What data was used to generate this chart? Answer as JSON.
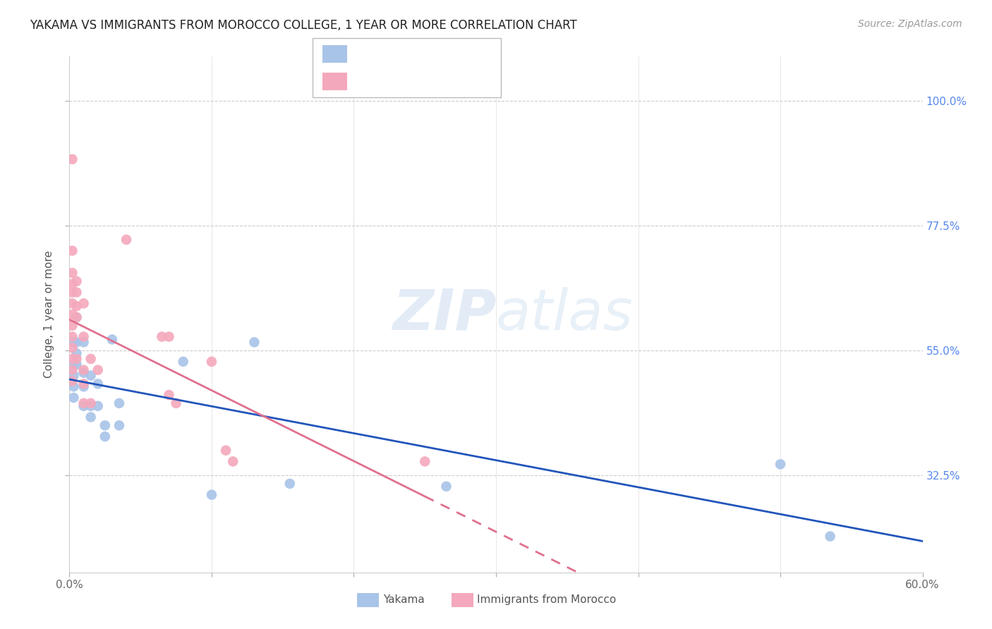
{
  "title": "YAKAMA VS IMMIGRANTS FROM MOROCCO COLLEGE, 1 YEAR OR MORE CORRELATION CHART",
  "source": "Source: ZipAtlas.com",
  "ylabel": "College, 1 year or more",
  "xlim": [
    0.0,
    0.6
  ],
  "ylim": [
    0.15,
    1.08
  ],
  "color_blue": "#a8c4e8",
  "color_pink": "#f4a8bc",
  "line_blue": "#2255bb",
  "line_pink": "#e07090",
  "watermark_zip": "ZIP",
  "watermark_atlas": "atlas",
  "blue_points": [
    [
      0.003,
      0.565
    ],
    [
      0.003,
      0.525
    ],
    [
      0.003,
      0.505
    ],
    [
      0.003,
      0.485
    ],
    [
      0.003,
      0.465
    ],
    [
      0.005,
      0.61
    ],
    [
      0.005,
      0.565
    ],
    [
      0.005,
      0.545
    ],
    [
      0.005,
      0.525
    ],
    [
      0.01,
      0.565
    ],
    [
      0.01,
      0.51
    ],
    [
      0.01,
      0.485
    ],
    [
      0.01,
      0.45
    ],
    [
      0.015,
      0.505
    ],
    [
      0.015,
      0.45
    ],
    [
      0.015,
      0.43
    ],
    [
      0.02,
      0.49
    ],
    [
      0.02,
      0.45
    ],
    [
      0.025,
      0.415
    ],
    [
      0.025,
      0.395
    ],
    [
      0.03,
      0.57
    ],
    [
      0.035,
      0.455
    ],
    [
      0.035,
      0.415
    ],
    [
      0.08,
      0.53
    ],
    [
      0.1,
      0.29
    ],
    [
      0.13,
      0.565
    ],
    [
      0.155,
      0.31
    ],
    [
      0.265,
      0.305
    ],
    [
      0.5,
      0.345
    ],
    [
      0.535,
      0.215
    ]
  ],
  "pink_points": [
    [
      0.002,
      0.895
    ],
    [
      0.002,
      0.73
    ],
    [
      0.002,
      0.69
    ],
    [
      0.002,
      0.67
    ],
    [
      0.002,
      0.655
    ],
    [
      0.002,
      0.635
    ],
    [
      0.002,
      0.615
    ],
    [
      0.002,
      0.595
    ],
    [
      0.002,
      0.575
    ],
    [
      0.002,
      0.555
    ],
    [
      0.002,
      0.535
    ],
    [
      0.002,
      0.515
    ],
    [
      0.002,
      0.495
    ],
    [
      0.005,
      0.675
    ],
    [
      0.005,
      0.655
    ],
    [
      0.005,
      0.63
    ],
    [
      0.005,
      0.61
    ],
    [
      0.005,
      0.535
    ],
    [
      0.01,
      0.635
    ],
    [
      0.01,
      0.575
    ],
    [
      0.01,
      0.515
    ],
    [
      0.01,
      0.49
    ],
    [
      0.01,
      0.455
    ],
    [
      0.015,
      0.535
    ],
    [
      0.015,
      0.455
    ],
    [
      0.02,
      0.515
    ],
    [
      0.04,
      0.75
    ],
    [
      0.065,
      0.575
    ],
    [
      0.07,
      0.575
    ],
    [
      0.07,
      0.47
    ],
    [
      0.075,
      0.455
    ],
    [
      0.1,
      0.53
    ],
    [
      0.11,
      0.37
    ],
    [
      0.115,
      0.35
    ],
    [
      0.25,
      0.35
    ]
  ]
}
